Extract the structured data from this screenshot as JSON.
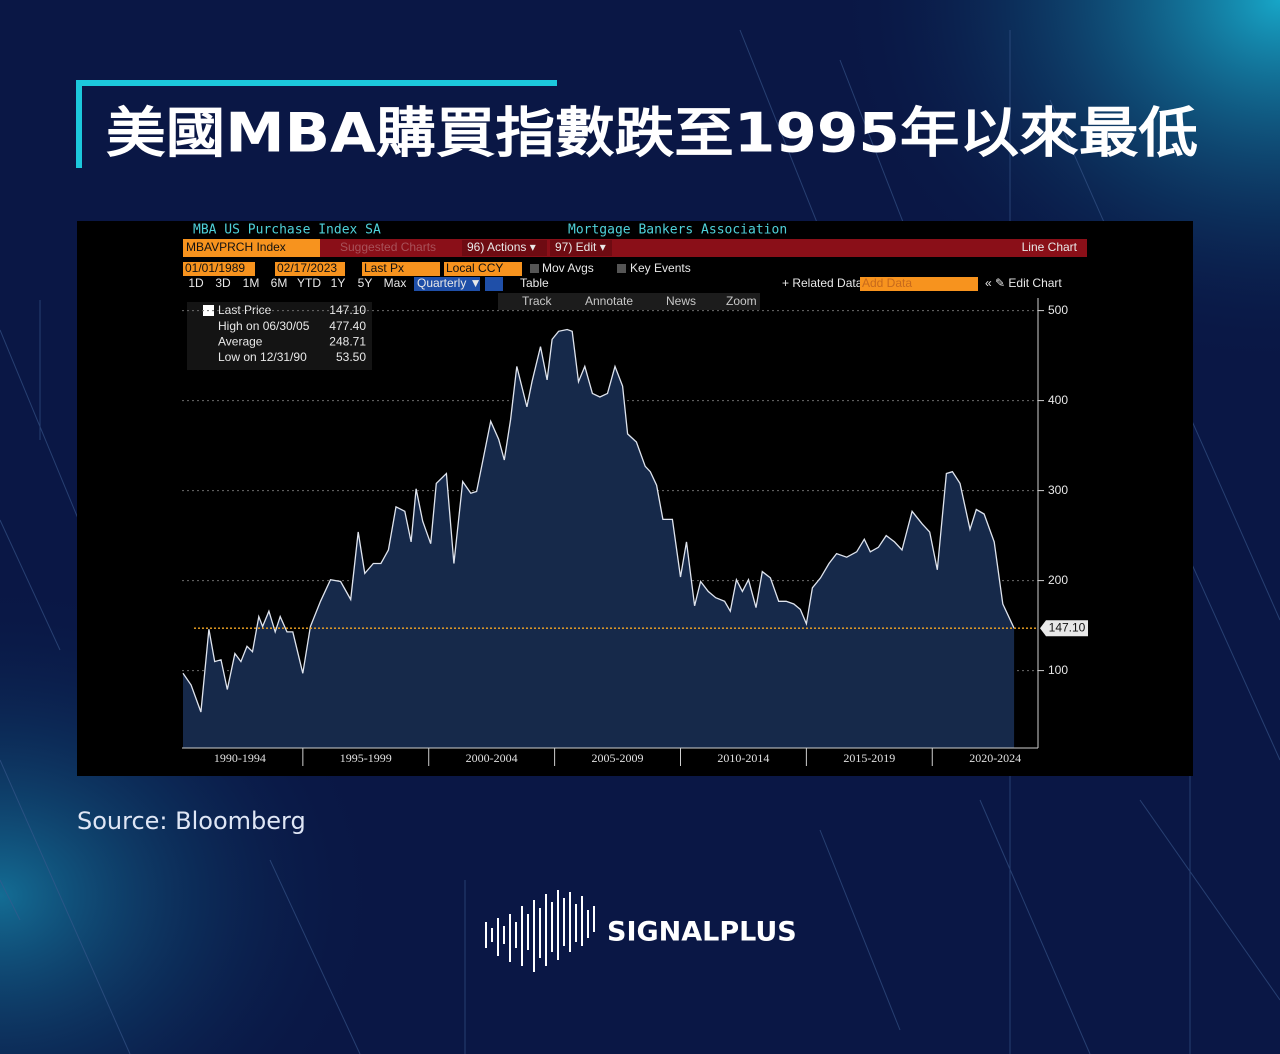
{
  "title": "美國MBA購買指數跌至1995年以來最低",
  "source": "Source:  Bloomberg",
  "brand": "SIGNALPLUS",
  "terminal": {
    "ticker": "MBAVPRCH Index",
    "suggested": "Suggested Charts",
    "actions": "96) Actions ▾",
    "edit": "97) Edit ▾",
    "chart_kind": "Line Chart",
    "start_date": "01/01/1989",
    "end_date": "02/17/2023",
    "field": "Last Px",
    "currency": "Local CCY",
    "mov_avgs": "Mov Avgs",
    "key_events": "Key Events",
    "periods": [
      "1D",
      "3D",
      "1M",
      "6M",
      "YTD",
      "1Y",
      "5Y",
      "Max"
    ],
    "frequency": "Quarterly ▼",
    "table": "Table",
    "related": "+ Related Data",
    "add_data": "Add Data",
    "edit_chart": "« ✎ Edit Chart",
    "tools": [
      "Track",
      "Annotate",
      "News",
      "Zoom"
    ]
  },
  "chart_data": {
    "type": "area",
    "title": "MBA US Purchase Index SA",
    "subtitle": "Mortgage Bankers Association",
    "x": [
      1990.24,
      1990.56,
      1990.95,
      1991.27,
      1991.5,
      1991.75,
      1992.0,
      1992.3,
      1992.54,
      1992.78,
      1993.0,
      1993.25,
      1993.4,
      1993.65,
      1993.9,
      1994.1,
      1994.37,
      1994.6,
      1995.0,
      1995.3,
      1995.7,
      1996.1,
      1996.5,
      1996.9,
      1997.2,
      1997.46,
      1997.8,
      1998.1,
      1998.4,
      1998.7,
      1999.05,
      1999.3,
      1999.5,
      1999.76,
      2000.08,
      2000.3,
      2000.7,
      2001.0,
      2001.35,
      2001.67,
      2001.9,
      2002.14,
      2002.46,
      2002.78,
      2003.0,
      2003.25,
      2003.5,
      2003.9,
      2004.1,
      2004.44,
      2004.7,
      2004.9,
      2005.16,
      2005.5,
      2005.7,
      2005.95,
      2006.2,
      2006.5,
      2006.8,
      2007.1,
      2007.4,
      2007.7,
      2007.9,
      2008.25,
      2008.6,
      2008.8,
      2009.05,
      2009.3,
      2009.68,
      2010.0,
      2010.24,
      2010.56,
      2010.8,
      2011.1,
      2011.4,
      2011.75,
      2011.98,
      2012.22,
      2012.46,
      2012.7,
      2013.0,
      2013.25,
      2013.57,
      2013.9,
      2014.2,
      2014.5,
      2014.76,
      2015.0,
      2015.24,
      2015.56,
      2015.9,
      2016.2,
      2016.6,
      2017.0,
      2017.3,
      2017.54,
      2017.86,
      2018.17,
      2018.5,
      2018.8,
      2019.2,
      2019.6,
      2019.9,
      2020.2,
      2020.56,
      2020.8,
      2021.1,
      2021.5,
      2021.75,
      2022.06,
      2022.46,
      2022.8,
      2023.25
    ],
    "series": [
      {
        "name": "Last Price",
        "color": "#dfe4ee",
        "fill": "#16294a",
        "values": [
          97,
          84,
          54,
          146,
          110,
          112,
          79,
          119,
          110,
          127,
          121,
          160,
          149,
          166,
          143,
          160,
          143,
          143,
          97,
          149,
          177,
          201,
          199,
          179,
          254,
          208,
          219,
          219,
          234,
          282,
          277,
          243,
          302,
          266,
          241,
          308,
          319,
          219,
          310,
          297,
          299,
          332,
          377,
          357,
          334,
          379,
          438,
          393,
          421,
          460,
          423,
          468,
          477,
          479,
          477,
          421,
          438,
          408,
          404,
          408,
          438,
          416,
          363,
          354,
          327,
          321,
          306,
          268,
          268,
          204,
          243,
          172,
          199,
          188,
          181,
          177,
          166,
          201,
          188,
          201,
          170,
          210,
          203,
          177,
          177,
          174,
          168,
          152,
          192,
          203,
          219,
          230,
          226,
          232,
          246,
          232,
          237,
          250,
          243,
          234,
          277,
          263,
          254,
          212,
          319,
          321,
          308,
          257,
          279,
          274,
          243,
          174,
          147.1
        ]
      }
    ],
    "last_price": {
      "value": 147.1,
      "label": "147.10",
      "color": "#f5a623"
    },
    "stats": [
      {
        "label": "High on 06/30/05",
        "value": "477.40"
      },
      {
        "label": "Average",
        "value": "248.71"
      },
      {
        "label": "Low on 12/31/90",
        "value": "53.50"
      }
    ],
    "xlim": [
      1990.2,
      2024.2
    ],
    "xticks": [
      {
        "value": 1992.5,
        "label": "1990-1994"
      },
      {
        "value": 1997.5,
        "label": "1995-1999"
      },
      {
        "value": 2002.5,
        "label": "2000-2004"
      },
      {
        "value": 2007.5,
        "label": "2005-2009"
      },
      {
        "value": 2012.5,
        "label": "2010-2014"
      },
      {
        "value": 2017.5,
        "label": "2015-2019"
      },
      {
        "value": 2022.5,
        "label": "2020-2024"
      }
    ],
    "xtick_marks": [
      1995,
      2000,
      2005,
      2010,
      2015,
      2020
    ],
    "ylim": [
      14,
      514
    ],
    "yticks": [
      100,
      200,
      300,
      400,
      500
    ],
    "grid": true
  }
}
